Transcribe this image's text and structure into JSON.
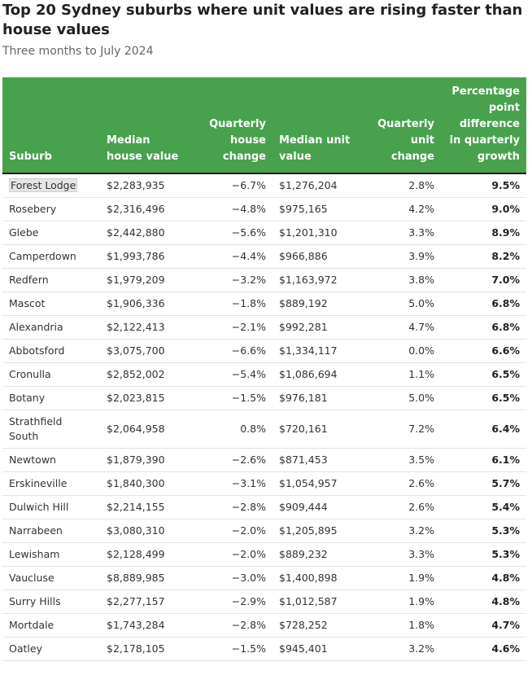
{
  "title": "Top 20 Sydney suburbs where unit values are rising faster than house values",
  "subtitle": "Three months to July 2024",
  "colors": {
    "header_bg": "#48a14d",
    "header_text": "#ffffff"
  },
  "chart_data": {
    "type": "table",
    "columns": [
      "Suburb",
      "Median house value",
      "Quarterly house change",
      "Median unit value",
      "Quarterly unit change",
      "Percentage point difference in quarterly growth"
    ],
    "rows": [
      {
        "suburb": "Forest Lodge",
        "house": "$2,283,935",
        "house_change": "−6.7%",
        "unit": "$1,276,204",
        "unit_change": "2.8%",
        "diff": "9.5%"
      },
      {
        "suburb": "Rosebery",
        "house": "$2,316,496",
        "house_change": "−4.8%",
        "unit": "$975,165",
        "unit_change": "4.2%",
        "diff": "9.0%"
      },
      {
        "suburb": "Glebe",
        "house": "$2,442,880",
        "house_change": "−5.6%",
        "unit": "$1,201,310",
        "unit_change": "3.3%",
        "diff": "8.9%"
      },
      {
        "suburb": "Camperdown",
        "house": "$1,993,786",
        "house_change": "−4.4%",
        "unit": "$966,886",
        "unit_change": "3.9%",
        "diff": "8.2%"
      },
      {
        "suburb": "Redfern",
        "house": "$1,979,209",
        "house_change": "−3.2%",
        "unit": "$1,163,972",
        "unit_change": "3.8%",
        "diff": "7.0%"
      },
      {
        "suburb": "Mascot",
        "house": "$1,906,336",
        "house_change": "−1.8%",
        "unit": "$889,192",
        "unit_change": "5.0%",
        "diff": "6.8%"
      },
      {
        "suburb": "Alexandria",
        "house": "$2,122,413",
        "house_change": "−2.1%",
        "unit": "$992,281",
        "unit_change": "4.7%",
        "diff": "6.8%"
      },
      {
        "suburb": "Abbotsford",
        "house": "$3,075,700",
        "house_change": "−6.6%",
        "unit": "$1,334,117",
        "unit_change": "0.0%",
        "diff": "6.6%"
      },
      {
        "suburb": "Cronulla",
        "house": "$2,852,002",
        "house_change": "−5.4%",
        "unit": "$1,086,694",
        "unit_change": "1.1%",
        "diff": "6.5%"
      },
      {
        "suburb": "Botany",
        "house": "$2,023,815",
        "house_change": "−1.5%",
        "unit": "$976,181",
        "unit_change": "5.0%",
        "diff": "6.5%"
      },
      {
        "suburb": "Strathfield South",
        "house": "$2,064,958",
        "house_change": "0.8%",
        "unit": "$720,161",
        "unit_change": "7.2%",
        "diff": "6.4%"
      },
      {
        "suburb": "Newtown",
        "house": "$1,879,390",
        "house_change": "−2.6%",
        "unit": "$871,453",
        "unit_change": "3.5%",
        "diff": "6.1%"
      },
      {
        "suburb": "Erskineville",
        "house": "$1,840,300",
        "house_change": "−3.1%",
        "unit": "$1,054,957",
        "unit_change": "2.6%",
        "diff": "5.7%"
      },
      {
        "suburb": "Dulwich Hill",
        "house": "$2,214,155",
        "house_change": "−2.8%",
        "unit": "$909,444",
        "unit_change": "2.6%",
        "diff": "5.4%"
      },
      {
        "suburb": "Narrabeen",
        "house": "$3,080,310",
        "house_change": "−2.0%",
        "unit": "$1,205,895",
        "unit_change": "3.2%",
        "diff": "5.3%"
      },
      {
        "suburb": "Lewisham",
        "house": "$2,128,499",
        "house_change": "−2.0%",
        "unit": "$889,232",
        "unit_change": "3.3%",
        "diff": "5.3%"
      },
      {
        "suburb": "Vaucluse",
        "house": "$8,889,985",
        "house_change": "−3.0%",
        "unit": "$1,400,898",
        "unit_change": "1.9%",
        "diff": "4.8%"
      },
      {
        "suburb": "Surry Hills",
        "house": "$2,277,157",
        "house_change": "−2.9%",
        "unit": "$1,012,587",
        "unit_change": "1.9%",
        "diff": "4.8%"
      },
      {
        "suburb": "Mortdale",
        "house": "$1,743,284",
        "house_change": "−2.8%",
        "unit": "$728,252",
        "unit_change": "1.8%",
        "diff": "4.7%"
      },
      {
        "suburb": "Oatley",
        "house": "$2,178,105",
        "house_change": "−1.5%",
        "unit": "$945,401",
        "unit_change": "3.2%",
        "diff": "4.6%"
      }
    ]
  }
}
